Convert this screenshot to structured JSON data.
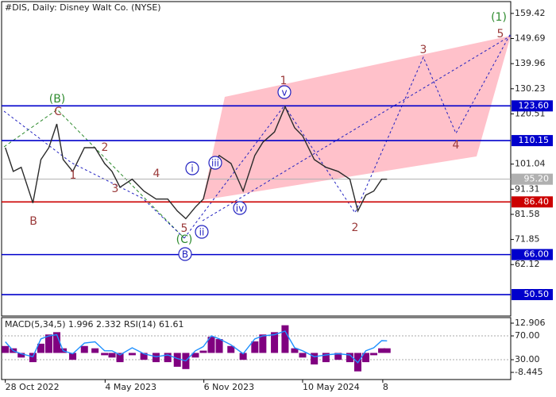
{
  "chart_data": [
    {
      "type": "line",
      "title": "#DIS, Daily:  Disney Walt Co. (NYSE)",
      "x": [
        "2022-10-28",
        "2022-11-12",
        "2022-11-27",
        "2022-12-19",
        "2023-01-03",
        "2023-01-18",
        "2023-02-02",
        "2023-02-14",
        "2023-03-04",
        "2023-03-26",
        "2023-04-15",
        "2023-05-03",
        "2023-05-17",
        "2023-06-01",
        "2023-06-24",
        "2023-07-16",
        "2023-08-08",
        "2023-08-30",
        "2023-09-17",
        "2023-10-03",
        "2023-10-21",
        "2023-11-05",
        "2023-11-20",
        "2023-12-05",
        "2023-12-27",
        "2024-01-19",
        "2024-02-10",
        "2024-02-25",
        "2024-03-18",
        "2024-04-07",
        "2024-04-25",
        "2024-05-10",
        "2024-06-01",
        "2024-06-23",
        "2024-07-16",
        "2024-08-07",
        "2024-08-22",
        "2024-09-06",
        "2024-09-21",
        "2024-10-06",
        "2024-10-16"
      ],
      "series": [
        {
          "color": "#2a2a2a",
          "values": [
            107.4,
            98.2,
            99.8,
            86.0,
            102.8,
            107.4,
            116.6,
            102.8,
            98.2,
            107.4,
            107.4,
            101.3,
            98.2,
            92.1,
            95.2,
            90.6,
            87.5,
            87.5,
            82.9,
            79.9,
            84.4,
            87.5,
            99.8,
            104.4,
            101.3,
            90.6,
            104.4,
            109.5,
            113.5,
            123.3,
            115.1,
            112.0,
            102.8,
            99.8,
            98.2,
            95.2,
            82.9,
            89.0,
            90.6,
            95.2,
            95.2
          ]
        }
      ],
      "xlim": [
        "2022-10-21",
        "2025-06-06"
      ],
      "ylim": [
        42.2,
        164.0
      ],
      "yticks": [
        159.42,
        149.69,
        139.96,
        130.23,
        120.51,
        101.04,
        91.31,
        81.58,
        71.85,
        62.12
      ],
      "levels": [
        {
          "value": 123.6,
          "label": "123.60",
          "color": "#0000cc"
        },
        {
          "value": 110.15,
          "label": "110.15",
          "color": "#0000cc"
        },
        {
          "value": 86.4,
          "label": "86.40",
          "color": "#cc0000"
        },
        {
          "value": 66.0,
          "label": "66.00",
          "color": "#0000cc"
        },
        {
          "value": 50.5,
          "label": "50.50",
          "color": "#0000cc"
        }
      ],
      "current_price": {
        "value": 95.2,
        "label": "95.20",
        "color": "#b0b0b0"
      },
      "annotations": [
        {
          "text": "(B)",
          "color": "#2e8b2e"
        },
        {
          "text": "C",
          "color": "#9b3a3a"
        },
        {
          "text": "B",
          "color": "#9b3a3a"
        },
        {
          "text": "1",
          "color": "#9b3a3a"
        },
        {
          "text": "2",
          "color": "#9b3a3a"
        },
        {
          "text": "3",
          "color": "#9b3a3a"
        },
        {
          "text": "4",
          "color": "#9b3a3a"
        },
        {
          "text": "5",
          "color": "#9b3a3a"
        },
        {
          "text": "(C)",
          "color": "#2e8b2e"
        },
        {
          "text": "B",
          "color": "#2020c0",
          "circled": true
        },
        {
          "text": "i",
          "color": "#2020c0",
          "circled": true
        },
        {
          "text": "ii",
          "color": "#2020c0",
          "circled": true
        },
        {
          "text": "iii",
          "color": "#2020c0",
          "circled": true
        },
        {
          "text": "iv",
          "color": "#2020c0",
          "circled": true
        },
        {
          "text": "v",
          "color": "#2020c0",
          "circled": true
        },
        {
          "text": "1",
          "color": "#9b3a3a"
        },
        {
          "text": "2",
          "color": "#9b3a3a"
        },
        {
          "text": "3",
          "color": "#9b3a3a"
        },
        {
          "text": "4",
          "color": "#9b3a3a"
        },
        {
          "text": "5",
          "color": "#9b3a3a"
        },
        {
          "text": "(1)",
          "color": "#2e8b2e"
        }
      ]
    },
    {
      "type": "bar",
      "title": "MACD(5,34,5) 1.996 2.332 RSI(14) 61.61",
      "x": [
        "2022-10-28",
        "2022-11-12",
        "2022-11-27",
        "2022-12-19",
        "2023-01-03",
        "2023-01-18",
        "2023-02-02",
        "2023-02-14",
        "2023-03-04",
        "2023-03-26",
        "2023-04-15",
        "2023-05-03",
        "2023-05-17",
        "2023-06-01",
        "2023-06-24",
        "2023-07-16",
        "2023-08-08",
        "2023-08-30",
        "2023-09-17",
        "2023-10-03",
        "2023-10-21",
        "2023-11-05",
        "2023-11-20",
        "2023-12-05",
        "2023-12-27",
        "2024-01-19",
        "2024-02-10",
        "2024-02-25",
        "2024-03-18",
        "2024-04-07",
        "2024-04-25",
        "2024-05-10",
        "2024-06-01",
        "2024-06-23",
        "2024-07-16",
        "2024-08-07",
        "2024-08-22",
        "2024-09-06",
        "2024-09-21",
        "2024-10-06",
        "2024-10-16"
      ],
      "series": [
        {
          "type": "bar",
          "color": "#800080",
          "values": [
            3,
            2,
            -2,
            -4,
            4,
            8,
            9,
            2,
            -3,
            3,
            2,
            -1,
            -2,
            -4,
            -1,
            -3,
            -4,
            -4,
            -6,
            -7,
            -2,
            1,
            7,
            6,
            3,
            -3,
            5,
            8,
            9,
            12,
            2,
            -2,
            -5,
            -4,
            -3,
            -4,
            -8,
            -4,
            -1,
            2,
            2
          ]
        },
        {
          "type": "line",
          "axis": "y2",
          "color": "#1e90ff",
          "values": [
            60,
            45,
            40,
            35,
            65,
            70,
            72,
            45,
            40,
            58,
            60,
            45,
            45,
            38,
            50,
            40,
            35,
            38,
            32,
            28,
            45,
            52,
            70,
            65,
            55,
            40,
            65,
            70,
            72,
            78,
            50,
            45,
            35,
            38,
            40,
            38,
            25,
            45,
            50,
            62,
            61.61
          ]
        }
      ],
      "xlim": [
        "2022-10-21",
        "2025-06-06"
      ],
      "xticks": [
        {
          "value": "2022-10-28",
          "label": "28 Oct 2022"
        },
        {
          "value": "2023-05-04",
          "label": "4 May 2023"
        },
        {
          "value": "2023-11-06",
          "label": "6 Nov 2023"
        },
        {
          "value": "2024-05-10",
          "label": "10 May 2024"
        },
        {
          "value": "2024-10-08",
          "label": "8"
        }
      ],
      "ylim": [
        -11.54,
        15.32
      ],
      "yticks": [
        12.906,
        -8.445
      ],
      "y2lim": [
        -3.3,
        100.7
      ],
      "y2ticks": [
        {
          "value": 70,
          "label": "70.00"
        },
        {
          "value": 30,
          "label": "30.00"
        }
      ]
    }
  ]
}
